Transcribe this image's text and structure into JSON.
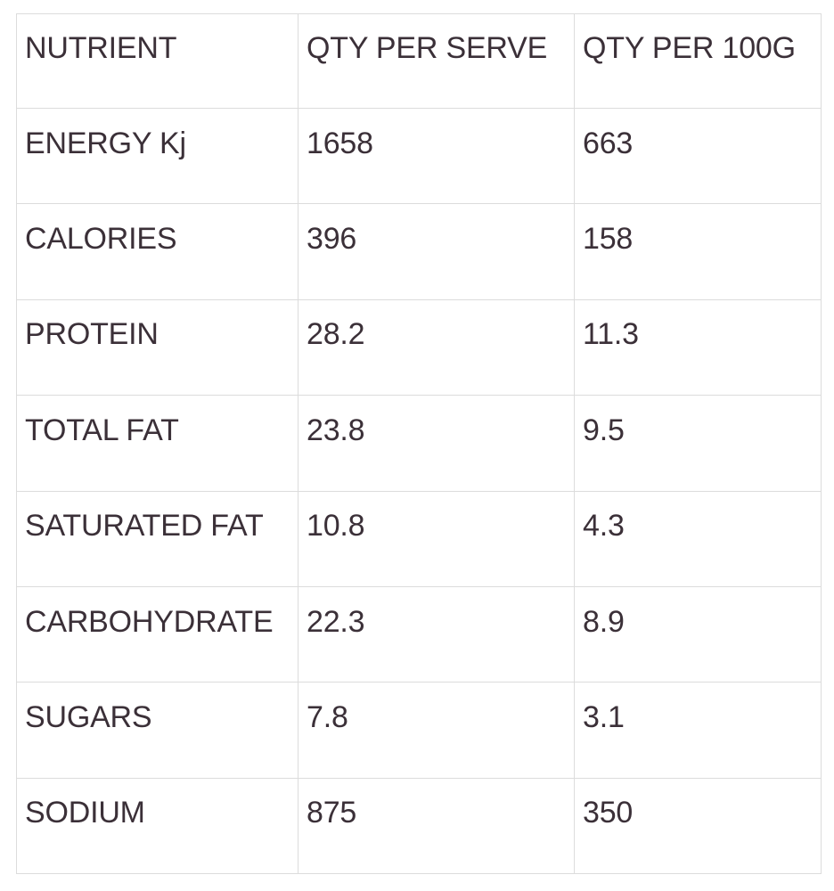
{
  "table": {
    "headers": [
      "NUTRIENT",
      "QTY PER SERVE",
      "QTY PER 100G"
    ],
    "rows": [
      [
        "ENERGY Kj",
        "1658",
        "663"
      ],
      [
        "CALORIES",
        "396",
        "158"
      ],
      [
        "PROTEIN",
        "28.2",
        "11.3"
      ],
      [
        "TOTAL FAT",
        "23.8",
        "9.5"
      ],
      [
        "SATURATED FAT",
        "10.8",
        "4.3"
      ],
      [
        "CARBOHYDRATE",
        "22.3",
        "8.9"
      ],
      [
        "SUGARS",
        "7.8",
        "3.1"
      ],
      [
        "SODIUM",
        "875",
        "350"
      ]
    ]
  }
}
